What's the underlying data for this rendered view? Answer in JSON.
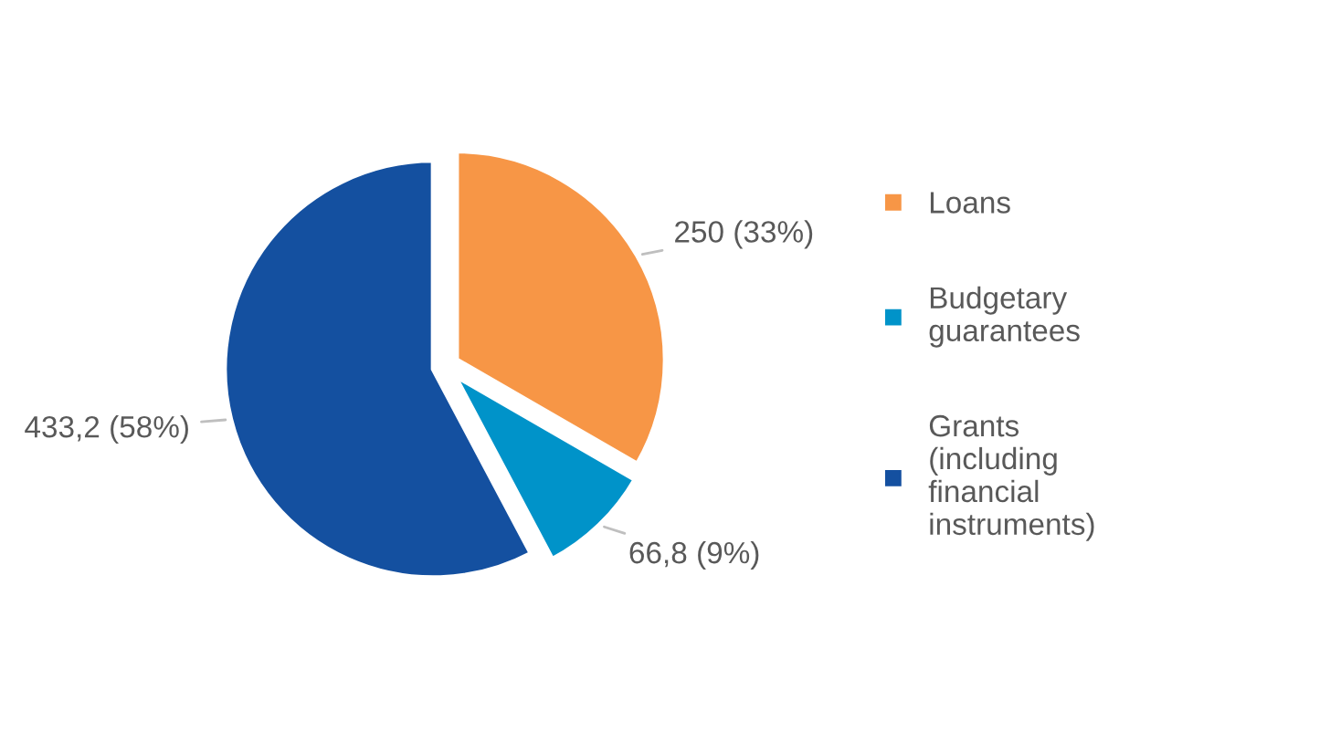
{
  "chart_data": {
    "type": "pie",
    "categories": [
      "Loans",
      "Budgetary guarantees",
      "Grants (including financial instruments)"
    ],
    "values": [
      250,
      66.8,
      433.2
    ],
    "colors": [
      "#f79646",
      "#0093c9",
      "#1450a0"
    ],
    "value_labels": [
      "250 (33%)",
      "66,8 (9%)",
      "433,2 (58%)"
    ],
    "legend": "right"
  }
}
